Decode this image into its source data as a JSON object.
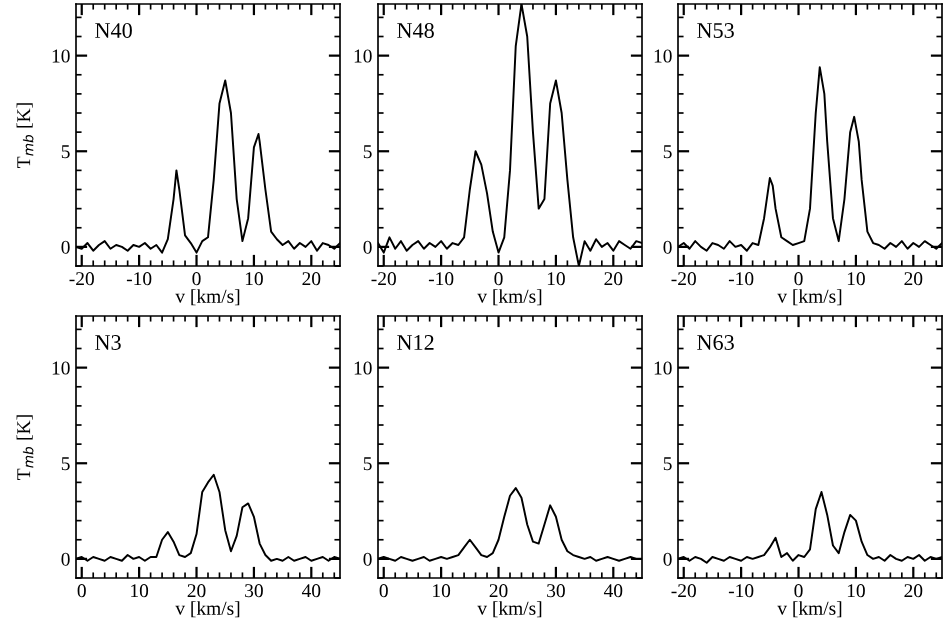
{
  "chart_data": [
    {
      "type": "line",
      "title": "N40",
      "ylabel": "T$_{mb}$ [K]",
      "xlabel": "v [km/s]",
      "color": "#000000",
      "xlim": [
        -21,
        25
      ],
      "ylim": [
        -1,
        12.7
      ],
      "xticks": [
        -20,
        -10,
        0,
        10,
        20
      ],
      "yticks": [
        0,
        5,
        10
      ],
      "x": [
        -21,
        -20,
        -19,
        -18,
        -17,
        -16,
        -15,
        -14,
        -13,
        -12,
        -11,
        -10,
        -9,
        -8,
        -7,
        -6,
        -5,
        -4,
        -3.5,
        -3,
        -2,
        -1,
        0,
        1,
        2,
        3,
        4,
        5,
        6,
        7,
        8,
        9,
        10,
        10.8,
        11,
        12,
        13,
        14,
        15,
        16,
        17,
        18,
        19,
        20,
        21,
        22,
        23,
        24,
        25
      ],
      "values": [
        0,
        -0.1,
        0.2,
        -0.2,
        0.1,
        0.3,
        -0.1,
        0.1,
        0,
        -0.2,
        0.1,
        0,
        0.2,
        -0.1,
        0.1,
        -0.3,
        0.4,
        2.5,
        4.0,
        3.0,
        0.6,
        0.2,
        -0.3,
        0.3,
        0.5,
        3.5,
        7.5,
        8.7,
        7.0,
        2.5,
        0.3,
        1.5,
        5.2,
        5.9,
        5.5,
        3.0,
        0.8,
        0.4,
        0.1,
        0.3,
        -0.1,
        0.2,
        0,
        0.3,
        -0.2,
        0.2,
        0.1,
        -0.1,
        0.2
      ]
    },
    {
      "type": "line",
      "title": "N48",
      "xlabel": "v [km/s]",
      "color": "#000000",
      "xlim": [
        -21,
        25
      ],
      "ylim": [
        -1,
        12.7
      ],
      "xticks": [
        -20,
        -10,
        0,
        10,
        20
      ],
      "yticks": [
        0,
        5,
        10
      ],
      "x": [
        -21,
        -20,
        -19,
        -18,
        -17,
        -16,
        -15,
        -14,
        -13,
        -12,
        -11,
        -10,
        -9,
        -8,
        -7,
        -6,
        -5,
        -4,
        -3,
        -2,
        -1,
        0,
        1,
        2,
        3,
        4,
        5,
        6,
        7,
        8,
        9,
        10,
        11,
        12,
        13,
        14,
        15,
        16,
        17,
        18,
        19,
        20,
        21,
        22,
        23,
        24,
        25
      ],
      "values": [
        0.2,
        -0.3,
        0.5,
        -0.1,
        0.3,
        -0.2,
        0.1,
        0.3,
        -0.1,
        0.2,
        0,
        0.3,
        -0.1,
        0.2,
        0.1,
        0.5,
        3.0,
        5.0,
        4.3,
        2.8,
        0.8,
        -0.3,
        0.5,
        4.0,
        10.5,
        12.7,
        11.0,
        6.0,
        2.0,
        2.5,
        7.5,
        8.7,
        7.0,
        3.5,
        0.5,
        -1.0,
        0.3,
        -0.2,
        0.4,
        0,
        0.2,
        -0.2,
        0.3,
        0.1,
        -0.1,
        0.3,
        0.2
      ]
    },
    {
      "type": "line",
      "title": "N53",
      "xlabel": "v [km/s]",
      "color": "#000000",
      "xlim": [
        -21,
        25
      ],
      "ylim": [
        -1,
        12.7
      ],
      "xticks": [
        -20,
        -10,
        0,
        10,
        20
      ],
      "yticks": [
        0,
        5,
        10
      ],
      "x": [
        -21,
        -20,
        -19,
        -18,
        -17,
        -16,
        -15,
        -14,
        -13,
        -12,
        -11,
        -10,
        -9,
        -8,
        -7,
        -6,
        -5,
        -4.5,
        -4,
        -3,
        -2,
        -1,
        0,
        1,
        2,
        3,
        3.7,
        4.5,
        5,
        6,
        7,
        8,
        9,
        9.7,
        10.5,
        11,
        12,
        13,
        14,
        15,
        16,
        17,
        18,
        19,
        20,
        21,
        22,
        23,
        24,
        25
      ],
      "values": [
        0,
        0.2,
        -0.1,
        0.3,
        0,
        -0.2,
        0.2,
        0.1,
        -0.1,
        0.3,
        0,
        0.1,
        -0.2,
        0.2,
        0.1,
        1.5,
        3.6,
        3.2,
        2.0,
        0.5,
        0.3,
        0.1,
        0.2,
        0.3,
        2.0,
        7.0,
        9.4,
        8.0,
        5.5,
        1.5,
        0.3,
        2.5,
        6.0,
        6.8,
        5.5,
        3.5,
        0.8,
        0.2,
        0.1,
        -0.1,
        0.2,
        0,
        0.3,
        -0.1,
        0.2,
        0,
        0.3,
        0.1,
        -0.1,
        0.2
      ]
    },
    {
      "type": "line",
      "title": "N3",
      "ylabel": "T$_{mb}$ [K]",
      "xlabel": "v [km/s]",
      "color": "#000000",
      "xlim": [
        -1,
        45
      ],
      "ylim": [
        -1,
        12.7
      ],
      "xticks": [
        0,
        10,
        20,
        30,
        40
      ],
      "yticks": [
        0,
        5,
        10
      ],
      "x": [
        -1,
        0,
        1,
        2,
        3,
        4,
        5,
        6,
        7,
        8,
        9,
        10,
        11,
        12,
        13,
        14,
        15,
        16,
        17,
        18,
        19,
        20,
        21,
        22,
        23,
        24,
        25,
        26,
        27,
        28,
        29,
        30,
        31,
        32,
        33,
        34,
        35,
        36,
        37,
        38,
        39,
        40,
        41,
        42,
        43,
        44,
        45
      ],
      "values": [
        0,
        0.1,
        -0.1,
        0.1,
        0,
        -0.1,
        0.1,
        0,
        -0.1,
        0.2,
        0,
        0.1,
        -0.1,
        0.1,
        0.1,
        1.0,
        1.4,
        0.9,
        0.2,
        0.1,
        0.3,
        1.3,
        3.5,
        4.0,
        4.4,
        3.5,
        1.5,
        0.4,
        1.2,
        2.7,
        2.9,
        2.2,
        0.8,
        0.2,
        -0.1,
        0,
        -0.1,
        0.1,
        -0.1,
        0,
        0.1,
        -0.1,
        0,
        0.1,
        -0.1,
        0.1,
        0
      ]
    },
    {
      "type": "line",
      "title": "N12",
      "xlabel": "v [km/s]",
      "color": "#000000",
      "xlim": [
        -1,
        45
      ],
      "ylim": [
        -1,
        12.7
      ],
      "xticks": [
        0,
        10,
        20,
        30,
        40
      ],
      "yticks": [
        0,
        5,
        10
      ],
      "x": [
        -1,
        0,
        1,
        2,
        3,
        4,
        5,
        6,
        7,
        8,
        9,
        10,
        11,
        12,
        13,
        14,
        15,
        16,
        17,
        18,
        19,
        20,
        21,
        22,
        23,
        24,
        25,
        26,
        27,
        28,
        29,
        30,
        31,
        32,
        33,
        34,
        35,
        36,
        37,
        38,
        39,
        40,
        41,
        42,
        43,
        44,
        45
      ],
      "values": [
        0,
        0.1,
        0,
        -0.1,
        0.1,
        0,
        -0.1,
        0,
        0.1,
        -0.1,
        0,
        0.1,
        0,
        0.1,
        0.2,
        0.6,
        1.0,
        0.6,
        0.2,
        0.1,
        0.3,
        1.0,
        2.2,
        3.3,
        3.7,
        3.2,
        1.8,
        0.9,
        0.8,
        1.8,
        2.8,
        2.2,
        1.0,
        0.4,
        0.2,
        0.1,
        0,
        0.1,
        -0.1,
        0,
        0.1,
        0,
        -0.1,
        0,
        0.1,
        0,
        0
      ]
    },
    {
      "type": "line",
      "title": "N63",
      "xlabel": "v [km/s]",
      "color": "#000000",
      "xlim": [
        -21,
        25
      ],
      "ylim": [
        -1,
        12.7
      ],
      "xticks": [
        -20,
        -10,
        0,
        10,
        20
      ],
      "yticks": [
        0,
        5,
        10
      ],
      "x": [
        -21,
        -20,
        -19,
        -18,
        -17,
        -16,
        -15,
        -14,
        -13,
        -12,
        -11,
        -10,
        -9,
        -8,
        -7,
        -6,
        -5,
        -4,
        -3.5,
        -3,
        -2,
        -1,
        0,
        1,
        2,
        3,
        4,
        5,
        6,
        7,
        8,
        9,
        10,
        11,
        12,
        13,
        14,
        15,
        16,
        17,
        18,
        19,
        20,
        21,
        22,
        23,
        24,
        25
      ],
      "values": [
        0,
        0.1,
        -0.1,
        0.1,
        0,
        -0.2,
        0.1,
        0,
        -0.1,
        0.1,
        0,
        -0.1,
        0.1,
        0,
        0.1,
        0.2,
        0.6,
        1.1,
        0.6,
        0.1,
        0.3,
        -0.1,
        0.2,
        0.1,
        0.5,
        2.6,
        3.5,
        2.3,
        0.7,
        0.3,
        1.4,
        2.3,
        2.0,
        0.9,
        0.2,
        0,
        0.1,
        -0.1,
        0.2,
        0,
        -0.1,
        0.1,
        0,
        0.2,
        -0.1,
        0.1,
        0,
        0.1
      ]
    }
  ]
}
